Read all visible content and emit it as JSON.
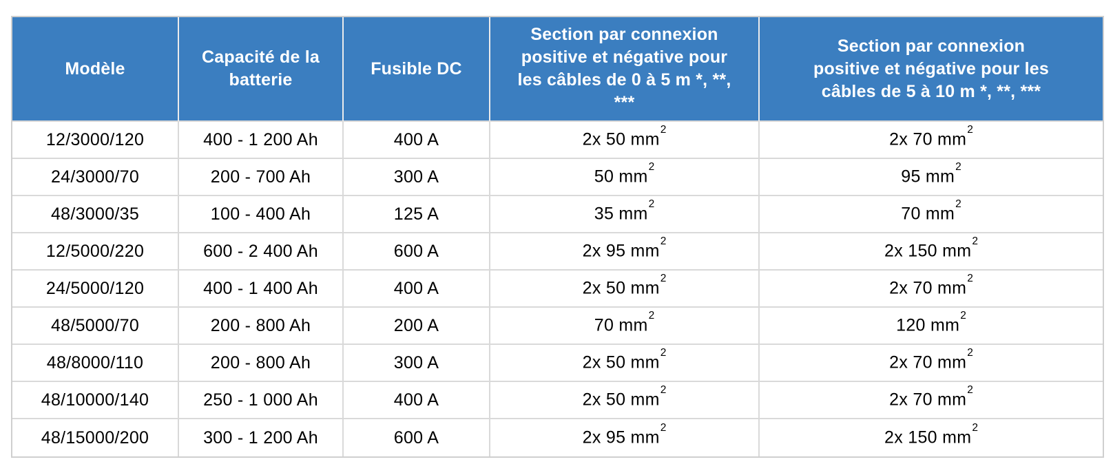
{
  "table": {
    "header_bg": "#3b7ec0",
    "header_text_color": "#ffffff",
    "body_text_color": "#000000",
    "border_color": "#d9d9d9",
    "columns": [
      "Modèle",
      "Capacité de la batterie",
      "Fusible DC",
      "Section par connexion positive et négative pour les câbles de 0 à 5 m *, **, ***",
      "Section par connexion positive et négative pour les câbles de 5 à 10 m *, **, ***"
    ],
    "rows": [
      [
        "12/3000/120",
        "400 - 1 200 Ah",
        "400 A",
        "2x 50 mm²",
        "2x 70 mm²"
      ],
      [
        "24/3000/70",
        "200 - 700 Ah",
        "300 A",
        "50 mm²",
        "95 mm²"
      ],
      [
        "48/3000/35",
        "100 - 400 Ah",
        "125 A",
        "35 mm²",
        "70 mm²"
      ],
      [
        "12/5000/220",
        "600 - 2 400 Ah",
        "600 A",
        "2x 95 mm²",
        "2x 150 mm²"
      ],
      [
        "24/5000/120",
        "400 - 1 400 Ah",
        "400 A",
        "2x 50 mm²",
        "2x 70 mm²"
      ],
      [
        "48/5000/70",
        "200 - 800 Ah",
        "200 A",
        "70 mm²",
        "120 mm²"
      ],
      [
        "48/8000/110",
        "200 - 800 Ah",
        "300 A",
        "2x 50 mm²",
        "2x 70 mm²"
      ],
      [
        "48/10000/140",
        "250 - 1 000 Ah",
        "400 A",
        "2x 50 mm²",
        "2x 70 mm²"
      ],
      [
        "48/15000/200",
        "300 - 1 200 Ah",
        "600 A",
        "2x 95 mm²",
        "2x 150 mm²"
      ]
    ]
  }
}
